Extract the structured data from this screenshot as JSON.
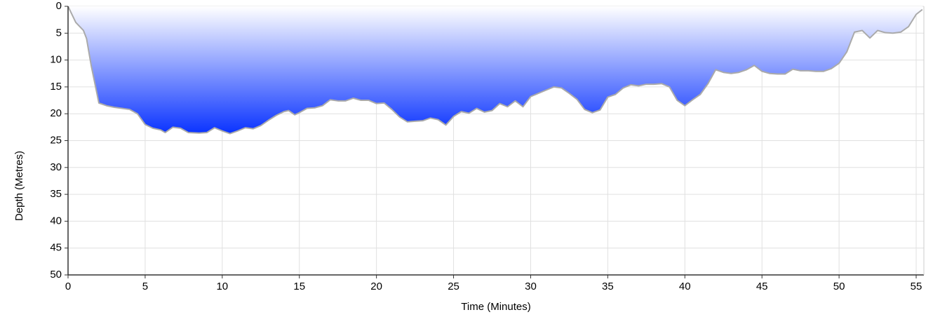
{
  "chart_data": {
    "type": "area",
    "x_label": "Time (Minutes)",
    "y_label": "Depth (Metres)",
    "x": [
      0,
      0.5,
      1,
      1.2,
      1.5,
      2,
      2.5,
      3,
      3.5,
      4,
      4.5,
      5,
      5.5,
      6,
      6.3,
      6.8,
      7.3,
      7.8,
      8.5,
      9,
      9.5,
      10,
      10.5,
      11,
      11.5,
      12,
      12.5,
      13,
      13.5,
      14,
      14.3,
      14.7,
      15,
      15.5,
      16,
      16.5,
      17,
      17.5,
      18,
      18.5,
      19,
      19.5,
      20,
      20.5,
      21,
      21.5,
      22,
      22.5,
      23,
      23.5,
      24,
      24.5,
      25,
      25.5,
      26,
      26.5,
      27,
      27.5,
      28,
      28.5,
      29,
      29.5,
      30,
      30.5,
      31,
      31.5,
      32,
      32.5,
      33,
      33.5,
      34,
      34.5,
      35,
      35.5,
      36,
      36.5,
      37,
      37.5,
      38,
      38.5,
      39,
      39.5,
      40,
      40.5,
      41,
      41.5,
      42,
      42.5,
      43,
      43.5,
      44,
      44.5,
      45,
      45.5,
      46,
      46.5,
      47,
      47.5,
      48,
      48.5,
      49,
      49.5,
      50,
      50.5,
      51,
      51.5,
      52,
      52.5,
      53,
      53.5,
      54,
      54.5,
      55,
      55.4
    ],
    "values": [
      0,
      3,
      4.5,
      6,
      11,
      18,
      18.5,
      18.8,
      19,
      19.2,
      20,
      22,
      22.7,
      23,
      23.5,
      22.5,
      22.7,
      23.5,
      23.6,
      23.5,
      22.6,
      23.2,
      23.7,
      23.2,
      22.6,
      22.8,
      22.2,
      21.2,
      20.3,
      19.6,
      19.4,
      20.2,
      19.8,
      19,
      18.9,
      18.5,
      17.4,
      17.6,
      17.6,
      17.1,
      17.5,
      17.5,
      18.1,
      18,
      19.2,
      20.6,
      21.5,
      21.4,
      21.3,
      20.8,
      21.1,
      22.1,
      20.5,
      19.6,
      19.9,
      19,
      19.7,
      19.4,
      18.1,
      18.7,
      17.6,
      18.7,
      16.8,
      16.2,
      15.6,
      15,
      15.2,
      16.2,
      17.3,
      19.2,
      19.8,
      19.3,
      16.9,
      16.4,
      15.2,
      14.6,
      14.8,
      14.5,
      14.5,
      14.4,
      15,
      17.5,
      18.5,
      17.4,
      16.4,
      14.4,
      11.8,
      12.3,
      12.5,
      12.3,
      11.8,
      11,
      12.1,
      12.5,
      12.6,
      12.6,
      11.7,
      12,
      12,
      12.1,
      12.1,
      11.6,
      10.6,
      8.5,
      4.8,
      4.5,
      5.9,
      4.5,
      4.9,
      5,
      4.8,
      3.8,
      1.5,
      0.6
    ],
    "color": "#0a33ff",
    "line_color": "#aaaaaa",
    "xlim": [
      0,
      55.5
    ],
    "xticks": [
      0,
      5,
      10,
      15,
      20,
      25,
      30,
      35,
      40,
      45,
      50,
      55
    ],
    "ylim": [
      0,
      50
    ],
    "yticks": [
      0,
      5,
      10,
      15,
      20,
      25,
      30,
      35,
      40,
      45,
      50
    ],
    "y_inverted": true,
    "grid": true
  }
}
